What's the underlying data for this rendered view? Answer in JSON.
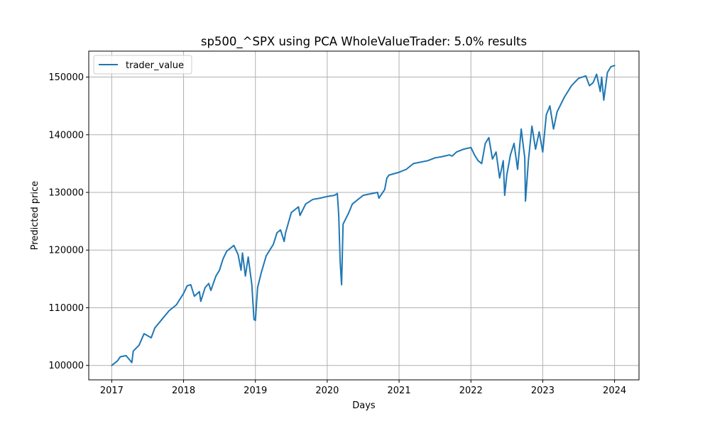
{
  "chart_data": {
    "type": "line",
    "title": "sp500_^SPX using PCA WholeValueTrader: 5.0% results",
    "xlabel": "Days",
    "ylabel": "Predicted price",
    "xlim": [
      2016.68,
      2024.34
    ],
    "ylim": [
      97500,
      154500
    ],
    "x_ticks": [
      2017,
      2018,
      2019,
      2020,
      2021,
      2022,
      2023,
      2024
    ],
    "x_tick_labels": [
      "2017",
      "2018",
      "2019",
      "2020",
      "2021",
      "2022",
      "2023",
      "2024"
    ],
    "y_ticks": [
      100000,
      110000,
      120000,
      130000,
      140000,
      150000
    ],
    "y_tick_labels": [
      "100000",
      "110000",
      "120000",
      "130000",
      "140000",
      "150000"
    ],
    "grid": true,
    "legend": {
      "placement": "upper-left",
      "entries": [
        "trader_value"
      ]
    },
    "colors": {
      "series": "#1f77b4",
      "grid": "#b0b0b0",
      "axes": "#000000"
    },
    "series": [
      {
        "name": "trader_value",
        "x": [
          2017.0,
          2017.08,
          2017.12,
          2017.2,
          2017.28,
          2017.3,
          2017.38,
          2017.45,
          2017.55,
          2017.6,
          2017.7,
          2017.8,
          2017.9,
          2018.0,
          2018.05,
          2018.1,
          2018.15,
          2018.22,
          2018.24,
          2018.3,
          2018.35,
          2018.38,
          2018.45,
          2018.5,
          2018.55,
          2018.6,
          2018.7,
          2018.76,
          2018.8,
          2018.82,
          2018.86,
          2018.9,
          2018.95,
          2018.98,
          2019.0,
          2019.03,
          2019.08,
          2019.15,
          2019.25,
          2019.3,
          2019.35,
          2019.4,
          2019.42,
          2019.5,
          2019.6,
          2019.62,
          2019.7,
          2019.8,
          2019.9,
          2020.0,
          2020.1,
          2020.14,
          2020.16,
          2020.18,
          2020.2,
          2020.22,
          2020.3,
          2020.35,
          2020.5,
          2020.7,
          2020.72,
          2020.8,
          2020.83,
          2020.86,
          2021.0,
          2021.1,
          2021.2,
          2021.4,
          2021.5,
          2021.6,
          2021.7,
          2021.74,
          2021.8,
          2021.9,
          2022.0,
          2022.05,
          2022.1,
          2022.15,
          2022.2,
          2022.25,
          2022.3,
          2022.35,
          2022.4,
          2022.45,
          2022.47,
          2022.5,
          2022.55,
          2022.6,
          2022.65,
          2022.7,
          2022.75,
          2022.76,
          2022.78,
          2022.8,
          2022.85,
          2022.9,
          2022.95,
          2023.0,
          2023.05,
          2023.1,
          2023.15,
          2023.2,
          2023.3,
          2023.4,
          2023.5,
          2023.55,
          2023.6,
          2023.65,
          2023.7,
          2023.75,
          2023.8,
          2023.82,
          2023.85,
          2023.9,
          2023.95,
          2024.0
        ],
        "values": [
          100000,
          100800,
          101500,
          101700,
          100500,
          102500,
          103500,
          105500,
          104800,
          106500,
          108000,
          109500,
          110500,
          112500,
          113800,
          114000,
          112000,
          112800,
          111100,
          113500,
          114200,
          113000,
          115500,
          116500,
          118500,
          119800,
          120800,
          119200,
          116500,
          119500,
          115500,
          118800,
          114000,
          108000,
          107800,
          113500,
          116000,
          119000,
          121000,
          123000,
          123500,
          121500,
          123000,
          126500,
          127500,
          126000,
          128000,
          128800,
          129000,
          129300,
          129500,
          129800,
          126000,
          118000,
          114000,
          124500,
          126500,
          128000,
          129500,
          130000,
          129000,
          130500,
          132500,
          133000,
          133500,
          134000,
          135000,
          135500,
          136000,
          136200,
          136500,
          136300,
          137000,
          137500,
          137800,
          136500,
          135500,
          135000,
          138500,
          139500,
          135800,
          137000,
          132500,
          135500,
          129500,
          133000,
          136500,
          138500,
          134000,
          141000,
          136000,
          128500,
          132000,
          135500,
          141500,
          137500,
          140500,
          137000,
          143500,
          145000,
          141000,
          144000,
          146500,
          148500,
          149800,
          150000,
          150200,
          148500,
          149000,
          150500,
          147500,
          150000,
          146000,
          150800,
          151800,
          152000
        ]
      }
    ]
  }
}
